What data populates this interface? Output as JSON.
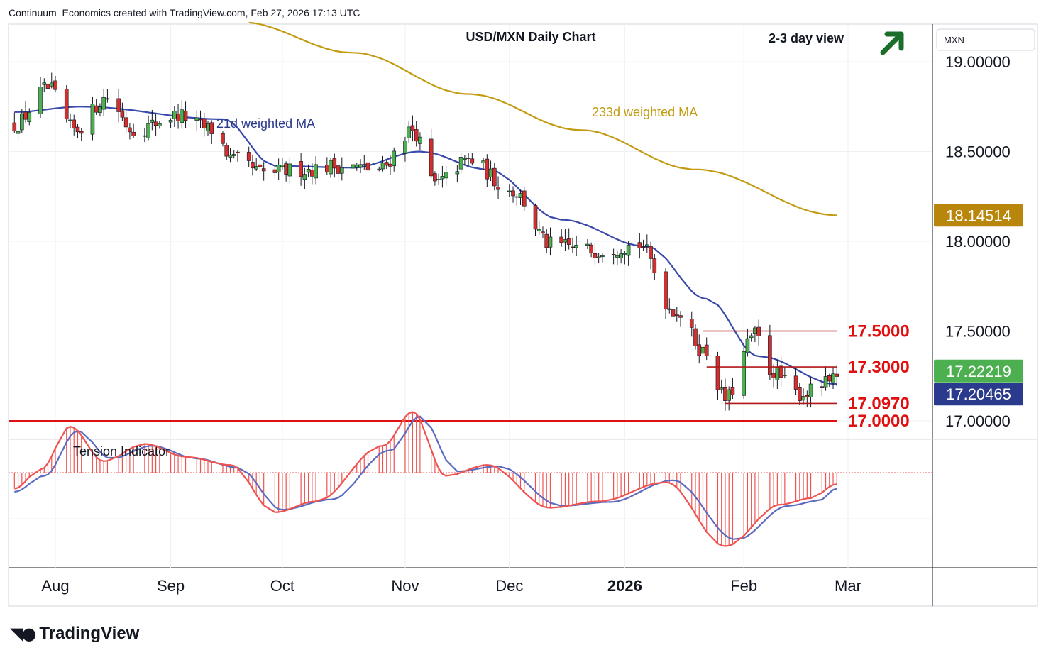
{
  "header": {
    "creator_line": "Continuum_Economics created with TradingView.com, Feb 27, 2026 17:13 UTC"
  },
  "branding": {
    "logo_text": "TradingView"
  },
  "chart_data": {
    "type": "candlestick",
    "title": "USD/MXN Daily Chart",
    "subtitle": "2-3 day view",
    "currency_label": "MXN",
    "y_ticks": [
      "19.00000",
      "18.50000",
      "18.00000",
      "17.50000",
      "17.00000"
    ],
    "y_tick_values": [
      19.0,
      18.5,
      18.0,
      17.5,
      17.0
    ],
    "ylim": [
      16.95,
      19.2
    ],
    "x_tick_labels": [
      "Aug",
      "Sep",
      "Oct",
      "Nov",
      "Dec",
      "2026",
      "Feb",
      "Mar"
    ],
    "x_tick_dates": [
      "2025-08-01",
      "2025-09-01",
      "2025-10-01",
      "2025-11-03",
      "2025-12-01",
      "2026-01-01",
      "2026-02-02",
      "2026-03-02"
    ],
    "price_badges": [
      {
        "value": "18.14514",
        "color": "#b8860b",
        "series": "233d weighted MA"
      },
      {
        "value": "17.22219",
        "color": "#4caf50",
        "series": "last close"
      },
      {
        "value": "17.20465",
        "color": "#2a3a8c",
        "series": "21d weighted MA"
      }
    ],
    "levels": [
      {
        "label": "17.5000",
        "value": 17.5
      },
      {
        "label": "17.3000",
        "value": 17.3
      },
      {
        "label": "17.0970",
        "value": 17.097
      },
      {
        "label": "17.0000",
        "value": 17.0
      }
    ],
    "annotations": {
      "ma21_label": "21d weighted MA",
      "ma233_label": "233d weighted MA",
      "trend_arrow": "up-arrow-icon"
    },
    "colors": {
      "up": "#4caf50",
      "down": "#d32f2f",
      "ma21": "#3949ab",
      "ma233": "#c39b12",
      "level": "#e01010",
      "oscillator_fast": "#ef5350",
      "oscillator_slow": "#5c6bc0"
    },
    "ohlc_anchors": [
      {
        "date": "2025-07-21",
        "close": 18.65
      },
      {
        "date": "2025-07-30",
        "close": 18.85
      },
      {
        "date": "2025-08-06",
        "close": 18.62
      },
      {
        "date": "2025-08-15",
        "close": 18.8
      },
      {
        "date": "2025-08-22",
        "close": 18.62
      },
      {
        "date": "2025-09-03",
        "close": 18.7
      },
      {
        "date": "2025-09-12",
        "close": 18.62
      },
      {
        "date": "2025-09-18",
        "close": 18.45
      },
      {
        "date": "2025-09-26",
        "close": 18.38
      },
      {
        "date": "2025-10-06",
        "close": 18.4
      },
      {
        "date": "2025-10-17",
        "close": 18.42
      },
      {
        "date": "2025-10-27",
        "close": 18.4
      },
      {
        "date": "2025-11-05",
        "close": 18.62
      },
      {
        "date": "2025-11-11",
        "close": 18.32
      },
      {
        "date": "2025-11-20",
        "close": 18.45
      },
      {
        "date": "2025-12-02",
        "close": 18.28
      },
      {
        "date": "2025-12-12",
        "close": 17.98
      },
      {
        "date": "2025-12-24",
        "close": 17.95
      },
      {
        "date": "2026-01-05",
        "close": 17.98
      },
      {
        "date": "2026-01-14",
        "close": 17.62
      },
      {
        "date": "2026-01-23",
        "close": 17.38
      },
      {
        "date": "2026-01-28",
        "close": 17.12
      },
      {
        "date": "2026-02-05",
        "close": 17.48
      },
      {
        "date": "2026-02-09",
        "close": 17.28
      },
      {
        "date": "2026-02-17",
        "close": 17.15
      },
      {
        "date": "2026-02-27",
        "close": 17.22
      }
    ],
    "ma21_anchors": [
      {
        "date": "2025-07-21",
        "value": 18.72
      },
      {
        "date": "2025-08-08",
        "value": 18.75
      },
      {
        "date": "2025-09-15",
        "value": 18.68
      },
      {
        "date": "2025-09-29",
        "value": 18.42
      },
      {
        "date": "2025-10-20",
        "value": 18.41
      },
      {
        "date": "2025-11-07",
        "value": 18.5
      },
      {
        "date": "2025-11-25",
        "value": 18.4
      },
      {
        "date": "2025-12-15",
        "value": 18.12
      },
      {
        "date": "2026-01-07",
        "value": 17.97
      },
      {
        "date": "2026-01-23",
        "value": 17.68
      },
      {
        "date": "2026-02-06",
        "value": 17.36
      },
      {
        "date": "2026-02-27",
        "value": 17.20465
      }
    ],
    "ma233_anchors": [
      {
        "date": "2025-09-20",
        "value": 19.22
      },
      {
        "date": "2025-10-20",
        "value": 19.05
      },
      {
        "date": "2025-11-20",
        "value": 18.82
      },
      {
        "date": "2025-12-20",
        "value": 18.62
      },
      {
        "date": "2026-01-20",
        "value": 18.4
      },
      {
        "date": "2026-02-27",
        "value": 18.14514
      }
    ],
    "tension_indicator": {
      "label": "Tension Indicator",
      "fast_anchors": [
        {
          "date": "2025-07-21",
          "value": -0.25
        },
        {
          "date": "2025-07-28",
          "value": 0.05
        },
        {
          "date": "2025-08-05",
          "value": 0.72
        },
        {
          "date": "2025-08-14",
          "value": 0.18
        },
        {
          "date": "2025-08-25",
          "value": 0.45
        },
        {
          "date": "2025-09-05",
          "value": 0.25
        },
        {
          "date": "2025-09-17",
          "value": 0.12
        },
        {
          "date": "2025-09-29",
          "value": -0.62
        },
        {
          "date": "2025-10-10",
          "value": -0.45
        },
        {
          "date": "2025-10-28",
          "value": 0.42
        },
        {
          "date": "2025-11-05",
          "value": 0.95
        },
        {
          "date": "2025-11-14",
          "value": -0.05
        },
        {
          "date": "2025-11-25",
          "value": 0.12
        },
        {
          "date": "2025-12-12",
          "value": -0.55
        },
        {
          "date": "2025-12-25",
          "value": -0.45
        },
        {
          "date": "2026-01-12",
          "value": -0.15
        },
        {
          "date": "2026-01-28",
          "value": -1.15
        },
        {
          "date": "2026-02-12",
          "value": -0.5
        },
        {
          "date": "2026-02-20",
          "value": -0.4
        },
        {
          "date": "2026-02-27",
          "value": -0.18
        }
      ],
      "slow_anchors": [
        {
          "date": "2025-07-21",
          "value": -0.3
        },
        {
          "date": "2025-07-29",
          "value": -0.05
        },
        {
          "date": "2025-08-07",
          "value": 0.65
        },
        {
          "date": "2025-08-16",
          "value": 0.22
        },
        {
          "date": "2025-08-27",
          "value": 0.42
        },
        {
          "date": "2025-09-08",
          "value": 0.22
        },
        {
          "date": "2025-09-19",
          "value": 0.08
        },
        {
          "date": "2025-10-01",
          "value": -0.58
        },
        {
          "date": "2025-10-14",
          "value": -0.42
        },
        {
          "date": "2025-10-30",
          "value": 0.35
        },
        {
          "date": "2025-11-07",
          "value": 0.88
        },
        {
          "date": "2025-11-17",
          "value": 0.02
        },
        {
          "date": "2025-11-28",
          "value": 0.1
        },
        {
          "date": "2025-12-15",
          "value": -0.52
        },
        {
          "date": "2025-12-28",
          "value": -0.46
        },
        {
          "date": "2026-01-14",
          "value": -0.12
        },
        {
          "date": "2026-01-31",
          "value": -1.05
        },
        {
          "date": "2026-02-14",
          "value": -0.52
        },
        {
          "date": "2026-02-22",
          "value": -0.44
        },
        {
          "date": "2026-02-27",
          "value": -0.25
        }
      ]
    }
  }
}
